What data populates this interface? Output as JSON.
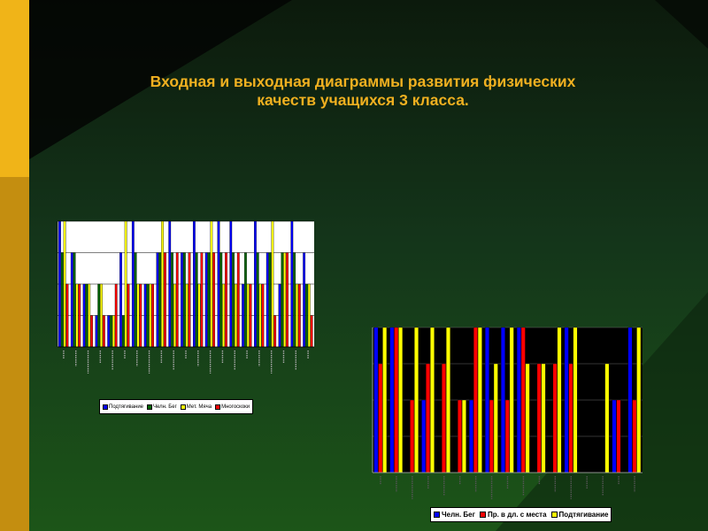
{
  "slide": {
    "title_lines": [
      "Входная и выходная диаграммы развития физических",
      "качеств учащихся 3 класса."
    ]
  },
  "colors": {
    "gold_bar": "#f0b418",
    "background_top": "#0c1a0c",
    "background_bottom": "#1c5518",
    "title": "#f0b020"
  },
  "chart_data": [
    {
      "type": "bar",
      "name": "entry",
      "background": "#ffffff",
      "ylim": [
        0,
        4
      ],
      "legend": [
        {
          "name": "Подтягивание",
          "color": "#0000ff"
        },
        {
          "name": "Челн. Бег",
          "color": "#006600"
        },
        {
          "name": "Мет. Мяча",
          "color": "#ffff00"
        },
        {
          "name": "Многоскоки",
          "color": "#ff0000"
        }
      ],
      "series": [
        {
          "name": "Подтягивание",
          "color": "#0000ff",
          "values": [
            4,
            3,
            2,
            1,
            1,
            3,
            4,
            2,
            3,
            4,
            3,
            4,
            3,
            4,
            4,
            2,
            4,
            3,
            2,
            4,
            3
          ]
        },
        {
          "name": "Челн. Бег",
          "color": "#006600",
          "values": [
            3,
            3,
            2,
            2,
            1,
            1,
            3,
            2,
            3,
            3,
            3,
            3,
            3,
            3,
            3,
            3,
            3,
            3,
            3,
            3,
            2
          ]
        },
        {
          "name": "Мет. Мяча",
          "color": "#ffff00",
          "values": [
            4,
            2,
            2,
            2,
            1,
            4,
            2,
            2,
            4,
            2,
            2,
            2,
            4,
            2,
            2,
            2,
            2,
            4,
            3,
            2,
            2
          ]
        },
        {
          "name": "Многоскоки",
          "color": "#ff0000",
          "values": [
            2,
            2,
            1,
            1,
            2,
            2,
            2,
            2,
            3,
            3,
            3,
            3,
            3,
            3,
            3,
            2,
            2,
            1,
            3,
            2,
            1
          ]
        }
      ]
    },
    {
      "type": "bar",
      "name": "exit",
      "background": "#000000",
      "ylim": [
        0,
        4
      ],
      "legend": [
        {
          "name": "Челн. Бег",
          "color": "#0000ff"
        },
        {
          "name": "Пр. в дл. с места",
          "color": "#ff0000"
        },
        {
          "name": "Подтягивание",
          "color": "#ffff00"
        }
      ],
      "series": [
        {
          "name": "Челн. Бег",
          "color": "#0000ff",
          "values": [
            4,
            4,
            0,
            2,
            0,
            0,
            2,
            4,
            4,
            4,
            0,
            0,
            4,
            0,
            0,
            2,
            4
          ]
        },
        {
          "name": "Пр. в дл. с места",
          "color": "#ff0000",
          "values": [
            3,
            4,
            2,
            3,
            3,
            2,
            4,
            2,
            2,
            4,
            3,
            3,
            3,
            0,
            0,
            2,
            2
          ]
        },
        {
          "name": "Подтягивание",
          "color": "#ffff00",
          "values": [
            4,
            4,
            4,
            4,
            4,
            2,
            4,
            3,
            4,
            3,
            3,
            4,
            4,
            0,
            3,
            0,
            4
          ]
        }
      ]
    }
  ]
}
